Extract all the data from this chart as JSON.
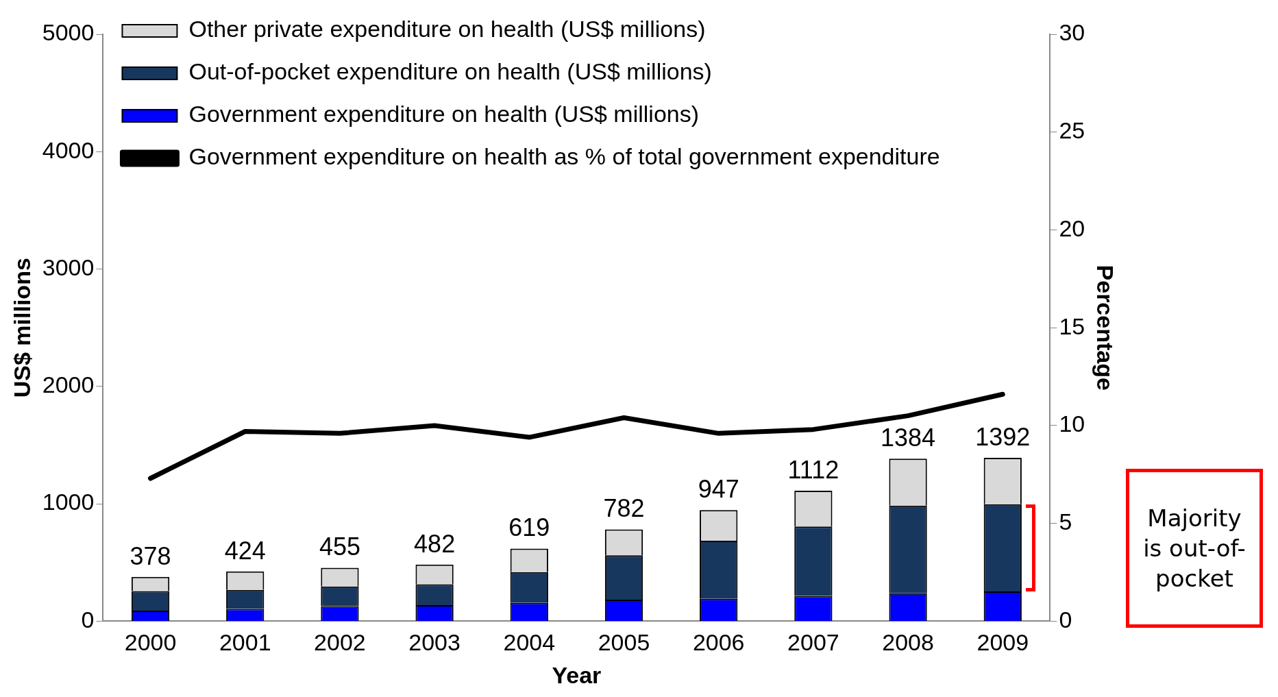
{
  "chart_data": {
    "type": "bar",
    "stacked": true,
    "xlabel": "Year",
    "ylabel": "US$ millions",
    "y2label": "Percentage",
    "categories": [
      "2000",
      "2001",
      "2002",
      "2003",
      "2004",
      "2005",
      "2006",
      "2007",
      "2008",
      "2009"
    ],
    "series": [
      {
        "name": "Government expenditure on health (US$ millions)",
        "color": "#0000ff",
        "values": [
          90,
          105,
          128,
          136,
          155,
          183,
          191,
          216,
          237,
          253
        ]
      },
      {
        "name": "Out-of-pocket expenditure on health (US$ millions)",
        "color": "#17375e",
        "values": [
          166,
          162,
          167,
          178,
          264,
          378,
          494,
          590,
          747,
          744
        ]
      },
      {
        "name": "Other private expenditure on health (US$ millions)",
        "color": "#d9d9d9",
        "values": [
          122,
          157,
          160,
          168,
          200,
          221,
          262,
          306,
          400,
          395
        ]
      },
      {
        "name": "Government expenditure on health as % of total government expenditure",
        "type": "line",
        "axis": "y2",
        "color": "#000000",
        "marker": "none",
        "line_style": "solid",
        "values": [
          7.3,
          9.7,
          9.6,
          10.0,
          9.4,
          10.4,
          9.6,
          9.8,
          10.5,
          11.6
        ]
      }
    ],
    "totals": [
      "378",
      "424",
      "455",
      "482",
      "619",
      "782",
      "947",
      "1112",
      "1384",
      "1392"
    ],
    "ylim": [
      0,
      5000
    ],
    "yticks": [
      0,
      1000,
      2000,
      3000,
      4000,
      5000
    ],
    "y2lim": [
      0,
      30
    ],
    "y2ticks": [
      0,
      5,
      10,
      15,
      20,
      25,
      30
    ],
    "grid": false,
    "legend": "top left",
    "annotations": [
      "Majority is out-of-pocket"
    ]
  }
}
